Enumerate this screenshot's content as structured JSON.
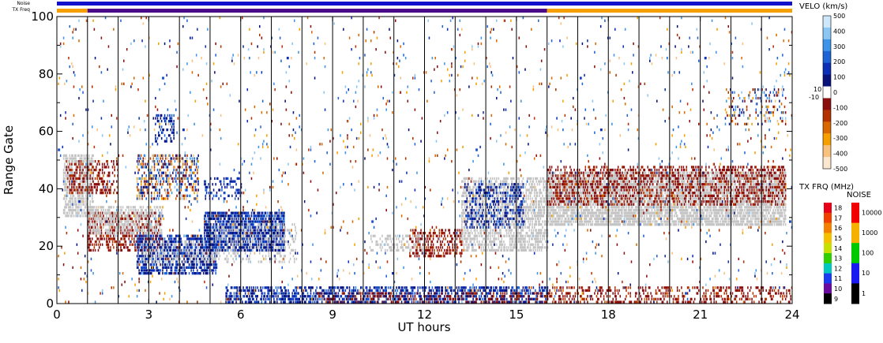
{
  "chart_data": {
    "type": "scatter",
    "xlabel": "UT hours",
    "ylabel": "Range Gate",
    "xlim": [
      0,
      24
    ],
    "ylim": [
      0,
      100
    ],
    "x_ticks": [
      "0",
      "3",
      "6",
      "9",
      "12",
      "15",
      "18",
      "21",
      "24"
    ],
    "y_ticks": [
      "0",
      "20",
      "40",
      "60",
      "80",
      "100"
    ],
    "hour_gridlines": true,
    "status_bars": {
      "noise_label": "Noise",
      "txfreq_label": "TX Freq",
      "noise_color": "#1111cc",
      "segments": [
        {
          "from": 0,
          "to": 1,
          "color": "#f5a000"
        },
        {
          "from": 1,
          "to": 16,
          "color": "#4b0a8a"
        },
        {
          "from": 16,
          "to": 24,
          "color": "#f5a000"
        }
      ]
    },
    "regions": [
      {
        "t0": 0.2,
        "t1": 1.2,
        "g0": 30,
        "g1": 52,
        "style": "gray",
        "density": 0.65
      },
      {
        "t0": 0.3,
        "t1": 2.0,
        "g0": 38,
        "g1": 50,
        "style": "neg",
        "density": 0.35
      },
      {
        "t0": 1.0,
        "t1": 3.4,
        "g0": 18,
        "g1": 32,
        "style": "neg",
        "density": 0.45
      },
      {
        "t0": 1.0,
        "t1": 3.4,
        "g0": 24,
        "g1": 34,
        "style": "gray",
        "density": 0.5
      },
      {
        "t0": 2.6,
        "t1": 4.6,
        "g0": 36,
        "g1": 52,
        "style": "mix",
        "density": 0.4
      },
      {
        "t0": 3.2,
        "t1": 3.8,
        "g0": 56,
        "g1": 66,
        "style": "pos",
        "density": 0.35
      },
      {
        "t0": 2.6,
        "t1": 5.2,
        "g0": 10,
        "g1": 24,
        "style": "pos",
        "density": 0.6
      },
      {
        "t0": 2.8,
        "t1": 5.2,
        "g0": 14,
        "g1": 22,
        "style": "gray",
        "density": 0.35
      },
      {
        "t0": 4.8,
        "t1": 7.4,
        "g0": 18,
        "g1": 32,
        "style": "pos",
        "density": 0.75
      },
      {
        "t0": 5.0,
        "t1": 7.8,
        "g0": 14,
        "g1": 28,
        "style": "gray",
        "density": 0.25
      },
      {
        "t0": 4.8,
        "t1": 6.0,
        "g0": 36,
        "g1": 44,
        "style": "pos",
        "density": 0.25
      },
      {
        "t0": 11.5,
        "t1": 13.2,
        "g0": 16,
        "g1": 26,
        "style": "neg",
        "density": 0.45
      },
      {
        "t0": 10.2,
        "t1": 12.0,
        "g0": 18,
        "g1": 24,
        "style": "gray",
        "density": 0.35
      },
      {
        "t0": 13.2,
        "t1": 16.0,
        "g0": 18,
        "g1": 44,
        "style": "gray",
        "density": 0.55
      },
      {
        "t0": 13.3,
        "t1": 15.2,
        "g0": 26,
        "g1": 42,
        "style": "pos",
        "density": 0.35
      },
      {
        "t0": 16.0,
        "t1": 23.8,
        "g0": 27,
        "g1": 46,
        "style": "gray",
        "density": 0.75
      },
      {
        "t0": 16.0,
        "t1": 23.8,
        "g0": 34,
        "g1": 48,
        "style": "neg",
        "density": 0.35
      },
      {
        "t0": 21.8,
        "t1": 23.8,
        "g0": 62,
        "g1": 75,
        "style": "mix",
        "density": 0.2
      },
      {
        "t0": 5.5,
        "t1": 16.0,
        "g0": 0,
        "g1": 6,
        "style": "pos",
        "density": 0.5
      },
      {
        "t0": 8.5,
        "t1": 16.0,
        "g0": 0,
        "g1": 4,
        "style": "neg",
        "density": 0.25
      },
      {
        "t0": 16.0,
        "t1": 24.0,
        "g0": 0,
        "g1": 6,
        "style": "neg",
        "density": 0.3
      },
      {
        "t0": 0.0,
        "t1": 24.0,
        "g0": 0,
        "g1": 100,
        "style": "mix",
        "density": 0.022
      }
    ],
    "velocity_scale": {
      "title": "VELO (km/s)",
      "labels": [
        "500",
        "400",
        "300",
        "200",
        "100",
        "0",
        "-100",
        "-200",
        "-300",
        "-400",
        "-500"
      ],
      "side_labels": [
        "10",
        "-10"
      ],
      "colors": [
        "#fbe6cf",
        "#f8c27e",
        "#f5a000",
        "#d96800",
        "#b43200",
        "#8b0e0e",
        "#ffffff",
        "#08127a",
        "#0d2fb5",
        "#1e63d6",
        "#3d94e8",
        "#8cc6f2",
        "#cde8fb"
      ]
    },
    "txfreq_scale": {
      "title": "TX FRQ (MHz)",
      "labels": [
        "18",
        "17",
        "16",
        "15",
        "14",
        "13",
        "12",
        "11",
        "10",
        "9"
      ],
      "colors": [
        "#e8001a",
        "#f04000",
        "#f58000",
        "#f5c000",
        "#c8e000",
        "#30d000",
        "#00c8c0",
        "#1a3cf0",
        "#6a0aa0",
        "#000000"
      ]
    },
    "noise_scale": {
      "title": "NOISE",
      "labels": [
        "10000",
        "1000",
        "100",
        "10",
        "1"
      ],
      "colors": [
        "#f00000",
        "#f5b000",
        "#00c800",
        "#1a1af0",
        "#000000"
      ]
    }
  }
}
